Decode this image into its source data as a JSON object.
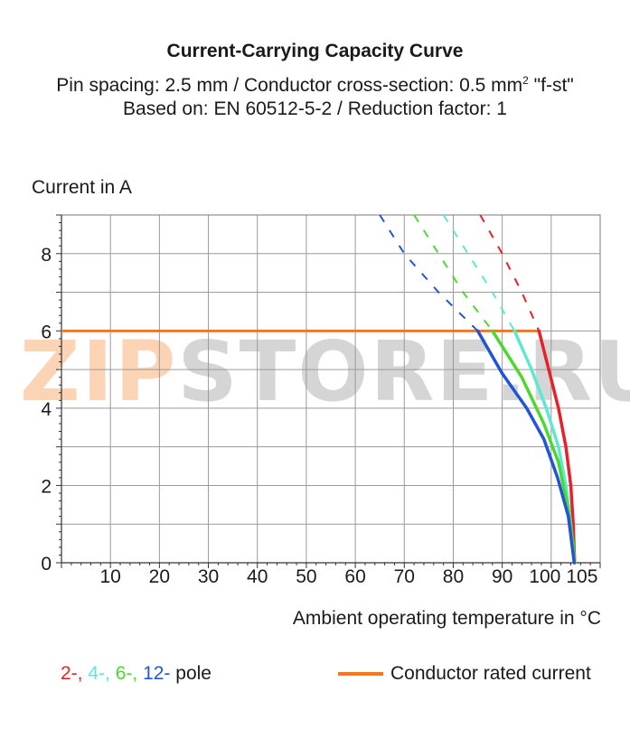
{
  "header": {
    "title": "Current-Carrying Capacity Curve",
    "subtitle_pre": "Pin spacing: 2.5 mm / Conductor cross-section: 0.5 mm",
    "subtitle_sup": "2",
    "subtitle_post": " \"f-st\"",
    "subtitle2": "Based on: EN 60512-5-2 / Reduction factor: 1"
  },
  "watermark": {
    "part1": "ZIP",
    "part2": "STORE.RU"
  },
  "legend": {
    "pole_items": [
      {
        "label": "2-,",
        "color": "#e8202a"
      },
      {
        "label": "4-,",
        "color": "#5ee8d2"
      },
      {
        "label": "6-,",
        "color": "#4ed82e"
      },
      {
        "label": "12-",
        "color": "#2155d6"
      }
    ],
    "pole_suffix": "pole",
    "rated_label": "Conductor rated current",
    "rated_color": "#f07820"
  },
  "chart_data": {
    "type": "line",
    "xlabel": "Ambient operating temperature in °C",
    "ylabel": "Current in A",
    "xlim": [
      0,
      110
    ],
    "ylim": [
      0,
      9
    ],
    "x_ticks": [
      10,
      20,
      30,
      40,
      50,
      60,
      70,
      80,
      90,
      100,
      105
    ],
    "y_ticks": [
      0,
      2,
      4,
      6,
      8
    ],
    "grid": true,
    "rated_current": 6,
    "series": [
      {
        "name": "2-",
        "color": "#e8202a",
        "dashed": [
          [
            85.5,
            9
          ],
          [
            90,
            8
          ],
          [
            94,
            7
          ],
          [
            97.5,
            6
          ]
        ],
        "solid": [
          [
            97.5,
            6
          ],
          [
            99.5,
            5
          ],
          [
            101.5,
            4
          ],
          [
            103,
            3
          ],
          [
            104,
            2
          ],
          [
            104.5,
            1
          ],
          [
            104.8,
            0
          ]
        ]
      },
      {
        "name": "4-",
        "color": "#5ee8d2",
        "dashed": [
          [
            78,
            9
          ],
          [
            83,
            8
          ],
          [
            88,
            7
          ],
          [
            92.5,
            6
          ]
        ],
        "solid": [
          [
            92.5,
            6
          ],
          [
            96,
            5
          ],
          [
            99,
            4
          ],
          [
            101.5,
            3
          ],
          [
            103,
            2
          ],
          [
            104,
            1
          ],
          [
            104.8,
            0
          ]
        ]
      },
      {
        "name": "6-",
        "color": "#4ed82e",
        "dashed": [
          [
            72,
            9
          ],
          [
            77,
            8
          ],
          [
            82,
            7
          ],
          [
            88,
            6
          ]
        ],
        "solid": [
          [
            88,
            6
          ],
          [
            94,
            4.8
          ],
          [
            98.5,
            3.6
          ],
          [
            101.5,
            2.6
          ],
          [
            103.3,
            1.5
          ],
          [
            104.5,
            0.5
          ],
          [
            104.8,
            0
          ]
        ]
      },
      {
        "name": "12-",
        "color": "#2155d6",
        "dashed": [
          [
            65,
            9
          ],
          [
            70,
            8
          ],
          [
            77,
            7
          ],
          [
            85,
            6
          ]
        ],
        "solid": [
          [
            85,
            6
          ],
          [
            90,
            4.9
          ],
          [
            95,
            4
          ],
          [
            98.5,
            3.2
          ],
          [
            101.3,
            2.2
          ],
          [
            103.5,
            1.2
          ],
          [
            104.7,
            0
          ]
        ]
      }
    ]
  }
}
